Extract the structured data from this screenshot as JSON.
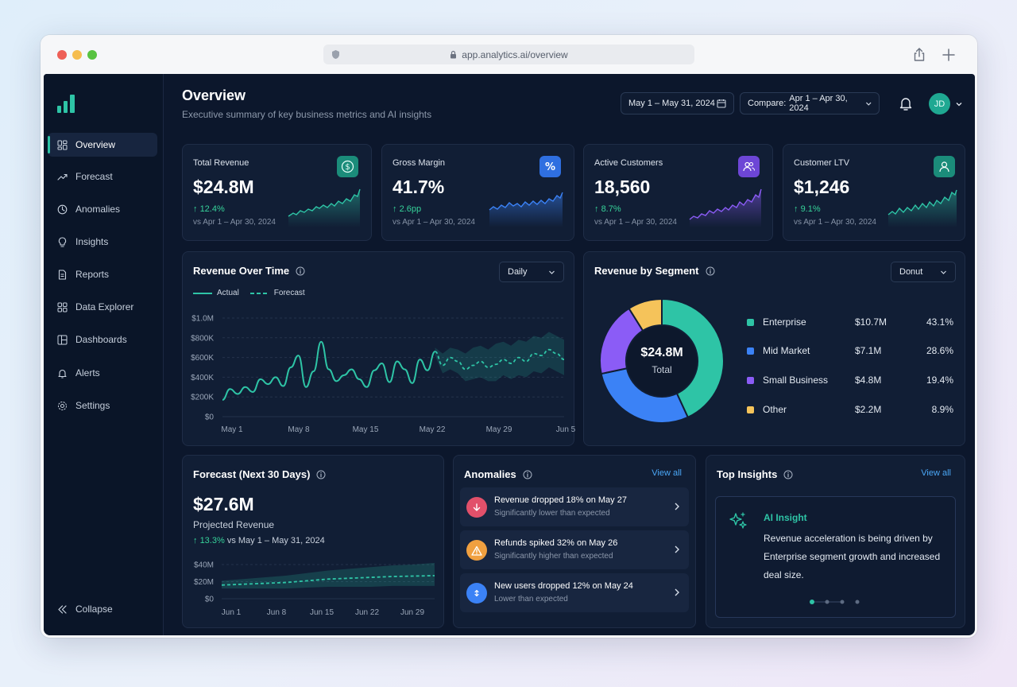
{
  "browser": {
    "url": "app.analytics.ai/overview"
  },
  "sidebar": {
    "items": [
      {
        "label": "Overview",
        "active": true
      },
      {
        "label": "Forecast"
      },
      {
        "label": "Anomalies"
      },
      {
        "label": "Insights"
      },
      {
        "label": "Reports"
      },
      {
        "label": "Data Explorer"
      },
      {
        "label": "Dashboards"
      },
      {
        "label": "Alerts"
      },
      {
        "label": "Settings"
      }
    ],
    "collapse_label": "Collapse"
  },
  "header": {
    "title": "Overview",
    "subtitle": "Executive summary of key business metrics and AI insights",
    "date_range": "May 1 – May 31, 2024",
    "compare_label": "Compare:",
    "compare_range": "Apr 1 – Apr 30, 2024",
    "avatar_initials": "JD"
  },
  "kpis": [
    {
      "label": "Total Revenue",
      "value": "$24.8M",
      "change": "12.4%",
      "compare": "vs Apr 1 – Apr 30, 2024",
      "icon": "dollar-icon",
      "color": "#22b59a"
    },
    {
      "label": "Gross Margin",
      "value": "41.7%",
      "change": "2.6pp",
      "compare": "vs Apr 1 – Apr 30, 2024",
      "icon": "percent-icon",
      "color": "#3b82f6"
    },
    {
      "label": "Active Customers",
      "value": "18,560",
      "change": "8.7%",
      "compare": "vs Apr 1 – Apr 30, 2024",
      "icon": "users-icon",
      "color": "#8b5cf6"
    },
    {
      "label": "Customer LTV",
      "value": "$1,246",
      "change": "9.1%",
      "compare": "vs Apr 1 – Apr 30, 2024",
      "icon": "user-icon",
      "color": "#22b59a"
    }
  ],
  "revenue_over_time": {
    "title": "Revenue Over Time",
    "period": "Daily",
    "legend_actual": "Actual",
    "legend_forecast": "Forecast"
  },
  "revenue_by_segment": {
    "title": "Revenue by Segment",
    "chart_type": "Donut",
    "center_value": "$24.8M",
    "center_label": "Total"
  },
  "forecast": {
    "title": "Forecast (Next 30 Days)",
    "value": "$27.6M",
    "label": "Projected Revenue",
    "change": "13.3%",
    "compare": "vs May 1 – May 31, 2024"
  },
  "anomalies": {
    "title": "Anomalies",
    "view_all": "View all",
    "items": [
      {
        "title": "Revenue dropped 18% on May 27",
        "subtitle": "Significantly lower than expected",
        "color": "#e2506a"
      },
      {
        "title": "Refunds spiked 32% on May 26",
        "subtitle": "Significantly higher than expected",
        "color": "#f0a040"
      },
      {
        "title": "New users dropped 12% on May 24",
        "subtitle": "Lower than expected",
        "color": "#3b82f6"
      }
    ]
  },
  "insights": {
    "title": "Top Insights",
    "view_all": "View all",
    "card_title": "AI Insight",
    "line1": "Revenue acceleration is being driven by",
    "line2": "Enterprise segment growth and increased",
    "line3": "deal size."
  },
  "chart_data": [
    {
      "type": "line",
      "title": "Revenue Over Time",
      "x_ticks": [
        "May 1",
        "May 8",
        "May 15",
        "May 22",
        "May 29",
        "Jun 5"
      ],
      "y_ticks": [
        "$0",
        "$200K",
        "$400K",
        "$600K",
        "$800K",
        "$1.0M"
      ],
      "ylim": [
        0,
        1000000
      ],
      "series": [
        {
          "name": "Actual",
          "values": [
            170000,
            280000,
            230000,
            300000,
            250000,
            380000,
            330000,
            400000,
            310000,
            500000,
            620000,
            300000,
            460000,
            760000,
            480000,
            360000,
            420000,
            480000,
            380000,
            300000,
            470000,
            540000,
            350000,
            560000,
            480000,
            340000,
            580000,
            470000,
            660000
          ]
        },
        {
          "name": "Forecast",
          "start_index": 28,
          "values": [
            660000,
            520000,
            600000,
            560000,
            480000,
            520000,
            560000,
            500000,
            530000,
            580000,
            540000,
            600000,
            560000,
            640000,
            620000,
            680000,
            640000,
            580000
          ],
          "upper": [
            700000,
            640000,
            700000,
            680000,
            640000,
            700000,
            720000,
            680000,
            740000,
            760000,
            720000,
            780000,
            760000,
            820000,
            800000,
            860000,
            820000,
            780000
          ],
          "lower": [
            620000,
            440000,
            480000,
            440000,
            360000,
            380000,
            400000,
            360000,
            360000,
            420000,
            380000,
            420000,
            400000,
            460000,
            440000,
            500000,
            460000,
            420000
          ]
        }
      ],
      "grid": true,
      "legend": "top-left"
    },
    {
      "type": "pie",
      "title": "Revenue by Segment",
      "labels": [
        "Enterprise",
        "Mid Market",
        "Small Business",
        "Other"
      ],
      "values": [
        "$10.7M",
        "$7.1M",
        "$4.8M",
        "$2.2M"
      ],
      "percents": [
        43.1,
        28.6,
        19.4,
        8.9
      ],
      "percent_labels": [
        "43.1%",
        "28.6%",
        "19.4%",
        "8.9%"
      ],
      "colors": [
        "#2ec4a6",
        "#3b82f6",
        "#8b5cf6",
        "#f5c35a"
      ],
      "legend": "right"
    },
    {
      "type": "area",
      "title": "Forecast (Next 30 Days)",
      "x_ticks": [
        "Jun 1",
        "Jun 8",
        "Jun 15",
        "Jun 22",
        "Jun 29"
      ],
      "y_ticks": [
        "$0",
        "$20M",
        "$40M"
      ],
      "ylim": [
        0,
        40000000
      ],
      "forecast": [
        16000000,
        17000000,
        18000000,
        19000000,
        21000000,
        23000000,
        24000000,
        25000000,
        26000000,
        26500000,
        27000000
      ],
      "upper": [
        21000000,
        23000000,
        25000000,
        27000000,
        30000000,
        33000000,
        35000000,
        37000000,
        39000000,
        40000000,
        42000000
      ],
      "lower": [
        12000000,
        12000000,
        12000000,
        12000000,
        13000000,
        14000000,
        14000000,
        14000000,
        15000000,
        15000000,
        15000000
      ]
    }
  ]
}
